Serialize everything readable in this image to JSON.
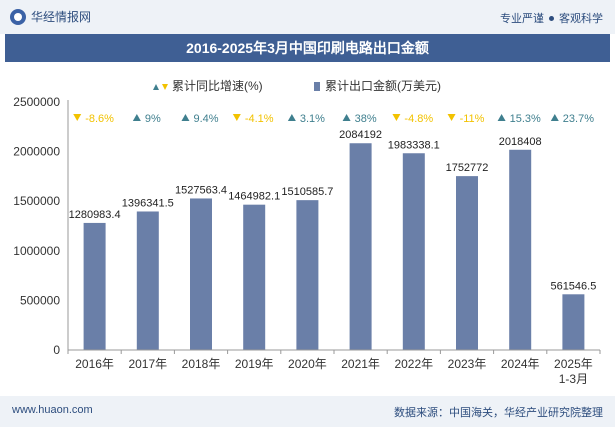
{
  "header": {
    "brand": "华经情报网",
    "tag1": "专业严谨",
    "tag2": "客观科学"
  },
  "title": "2016-2025年3月中国印刷电路出口金额",
  "footer": {
    "website": "www.huaon.com",
    "source": "数据来源：中国海关，华经产业研究院整理"
  },
  "chart_data": {
    "type": "bar",
    "title": "2016-2025年3月中国印刷电路出口金额",
    "categories": [
      "2016年",
      "2017年",
      "2018年",
      "2019年",
      "2020年",
      "2021年",
      "2022年",
      "2023年",
      "2024年",
      "2025年\n1-3月"
    ],
    "series": [
      {
        "name": "累计出口金额(万美元)",
        "values": [
          1280983.4,
          1396341.5,
          1527563.4,
          1464982.1,
          1510585.7,
          2084192,
          1983338.1,
          1752772,
          2018408,
          561546.5
        ],
        "labels": [
          "1280983.4",
          "1396341.5",
          "1527563.4",
          "1464982.1",
          "1510585.7",
          "2084192",
          "1983338.1",
          "1752772",
          "2018408",
          "561546.5"
        ],
        "color": "#6a7fa8"
      },
      {
        "name": "累计同比增速(%)",
        "values": [
          -8.6,
          9,
          9.4,
          -4.1,
          3.1,
          38,
          -4.8,
          -11,
          15.3,
          23.7
        ],
        "labels": [
          "-8.6%",
          "9%",
          "9.4%",
          "-4.1%",
          "3.1%",
          "38%",
          "-4.8%",
          "-11%",
          "15.3%",
          "23.7%"
        ],
        "up_color": "#3f7f8e",
        "down_color": "#f2c200"
      }
    ],
    "ylim": [
      0,
      2500000
    ],
    "yticks": [
      "0",
      "500000",
      "1000000",
      "1500000",
      "2000000",
      "2500000"
    ],
    "grid": false,
    "legend": "top-center"
  }
}
